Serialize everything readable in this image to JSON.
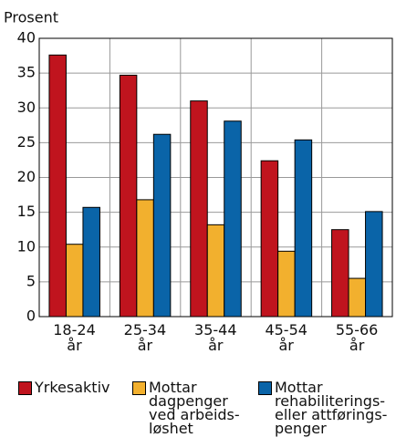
{
  "chart_data": {
    "type": "bar",
    "y_label": "Prosent",
    "categories": [
      "18-24\når",
      "25-34\når",
      "35-44\når",
      "45-54\når",
      "55-66\når"
    ],
    "series": [
      {
        "name": "Yrkesaktiv",
        "color": "#c0141e",
        "values": [
          37.6,
          34.7,
          31.0,
          22.4,
          12.5
        ]
      },
      {
        "name": "Mottar\ndagpenger\nved arbeids-\nløshet",
        "color": "#f2b02e",
        "values": [
          10.4,
          16.8,
          13.2,
          9.4,
          5.5
        ]
      },
      {
        "name": "Mottar\nrehabiliterings-\neller attførings-\npenger",
        "color": "#0a64a8",
        "values": [
          15.7,
          26.2,
          28.1,
          25.4,
          15.1
        ]
      }
    ],
    "ylim": [
      0,
      40
    ],
    "yticks": [
      0,
      5,
      10,
      15,
      20,
      25,
      30,
      35,
      40
    ],
    "grid": true
  }
}
